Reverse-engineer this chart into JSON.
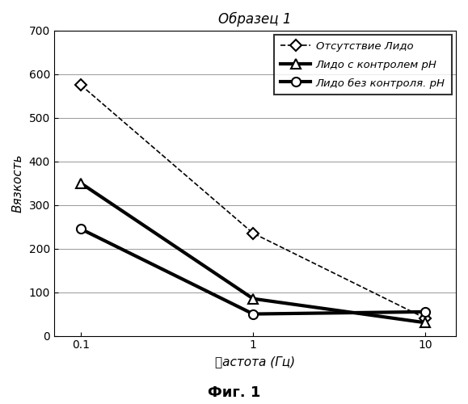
{
  "title": "Образец 1",
  "xlabel": "䉺астота (Гц)",
  "ylabel": "Вязкость",
  "fig_label": "Фиг. 1",
  "xdata": [
    0.1,
    1,
    10
  ],
  "series": [
    {
      "label": "Отсутствие Лидо",
      "y": [
        575,
        235,
        40
      ],
      "color": "#000000",
      "linestyle": "--",
      "marker": "D",
      "linewidth": 1.2,
      "markersize": 7
    },
    {
      "label": "Лидо с контролем pH",
      "y": [
        350,
        85,
        30
      ],
      "color": "#000000",
      "linestyle": "-",
      "marker": "^",
      "linewidth": 3.0,
      "markersize": 8
    },
    {
      "label": "Лидо без контроля. pH",
      "y": [
        245,
        50,
        55
      ],
      "color": "#000000",
      "linestyle": "-",
      "marker": "o",
      "linewidth": 3.0,
      "markersize": 8
    }
  ],
  "ylim": [
    0,
    700
  ],
  "yticks": [
    0,
    100,
    200,
    300,
    400,
    500,
    600,
    700
  ],
  "xticks": [
    0.1,
    1,
    10
  ],
  "xtick_labels": [
    "0.1",
    "1",
    "10"
  ],
  "background_color": "#ffffff",
  "title_fontsize": 12,
  "axis_label_fontsize": 11,
  "tick_fontsize": 10,
  "legend_fontsize": 9.5
}
